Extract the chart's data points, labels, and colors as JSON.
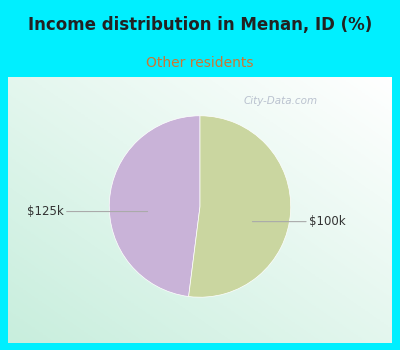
{
  "title": "Income distribution in Menan, ID (%)",
  "subtitle": "Other residents",
  "slices": [
    48.0,
    52.0
  ],
  "labels": [
    "$100k",
    "$125k"
  ],
  "colors": [
    "#c9b3d8",
    "#cad6a0"
  ],
  "bg_cyan": "#00efff",
  "bg_chart_color": "#e8f5ee",
  "title_fontsize": 12,
  "subtitle_fontsize": 10,
  "subtitle_color": "#cc7733",
  "label_fontsize": 8.5,
  "watermark": "City-Data.com",
  "startangle": 90,
  "title_color": "#222222"
}
